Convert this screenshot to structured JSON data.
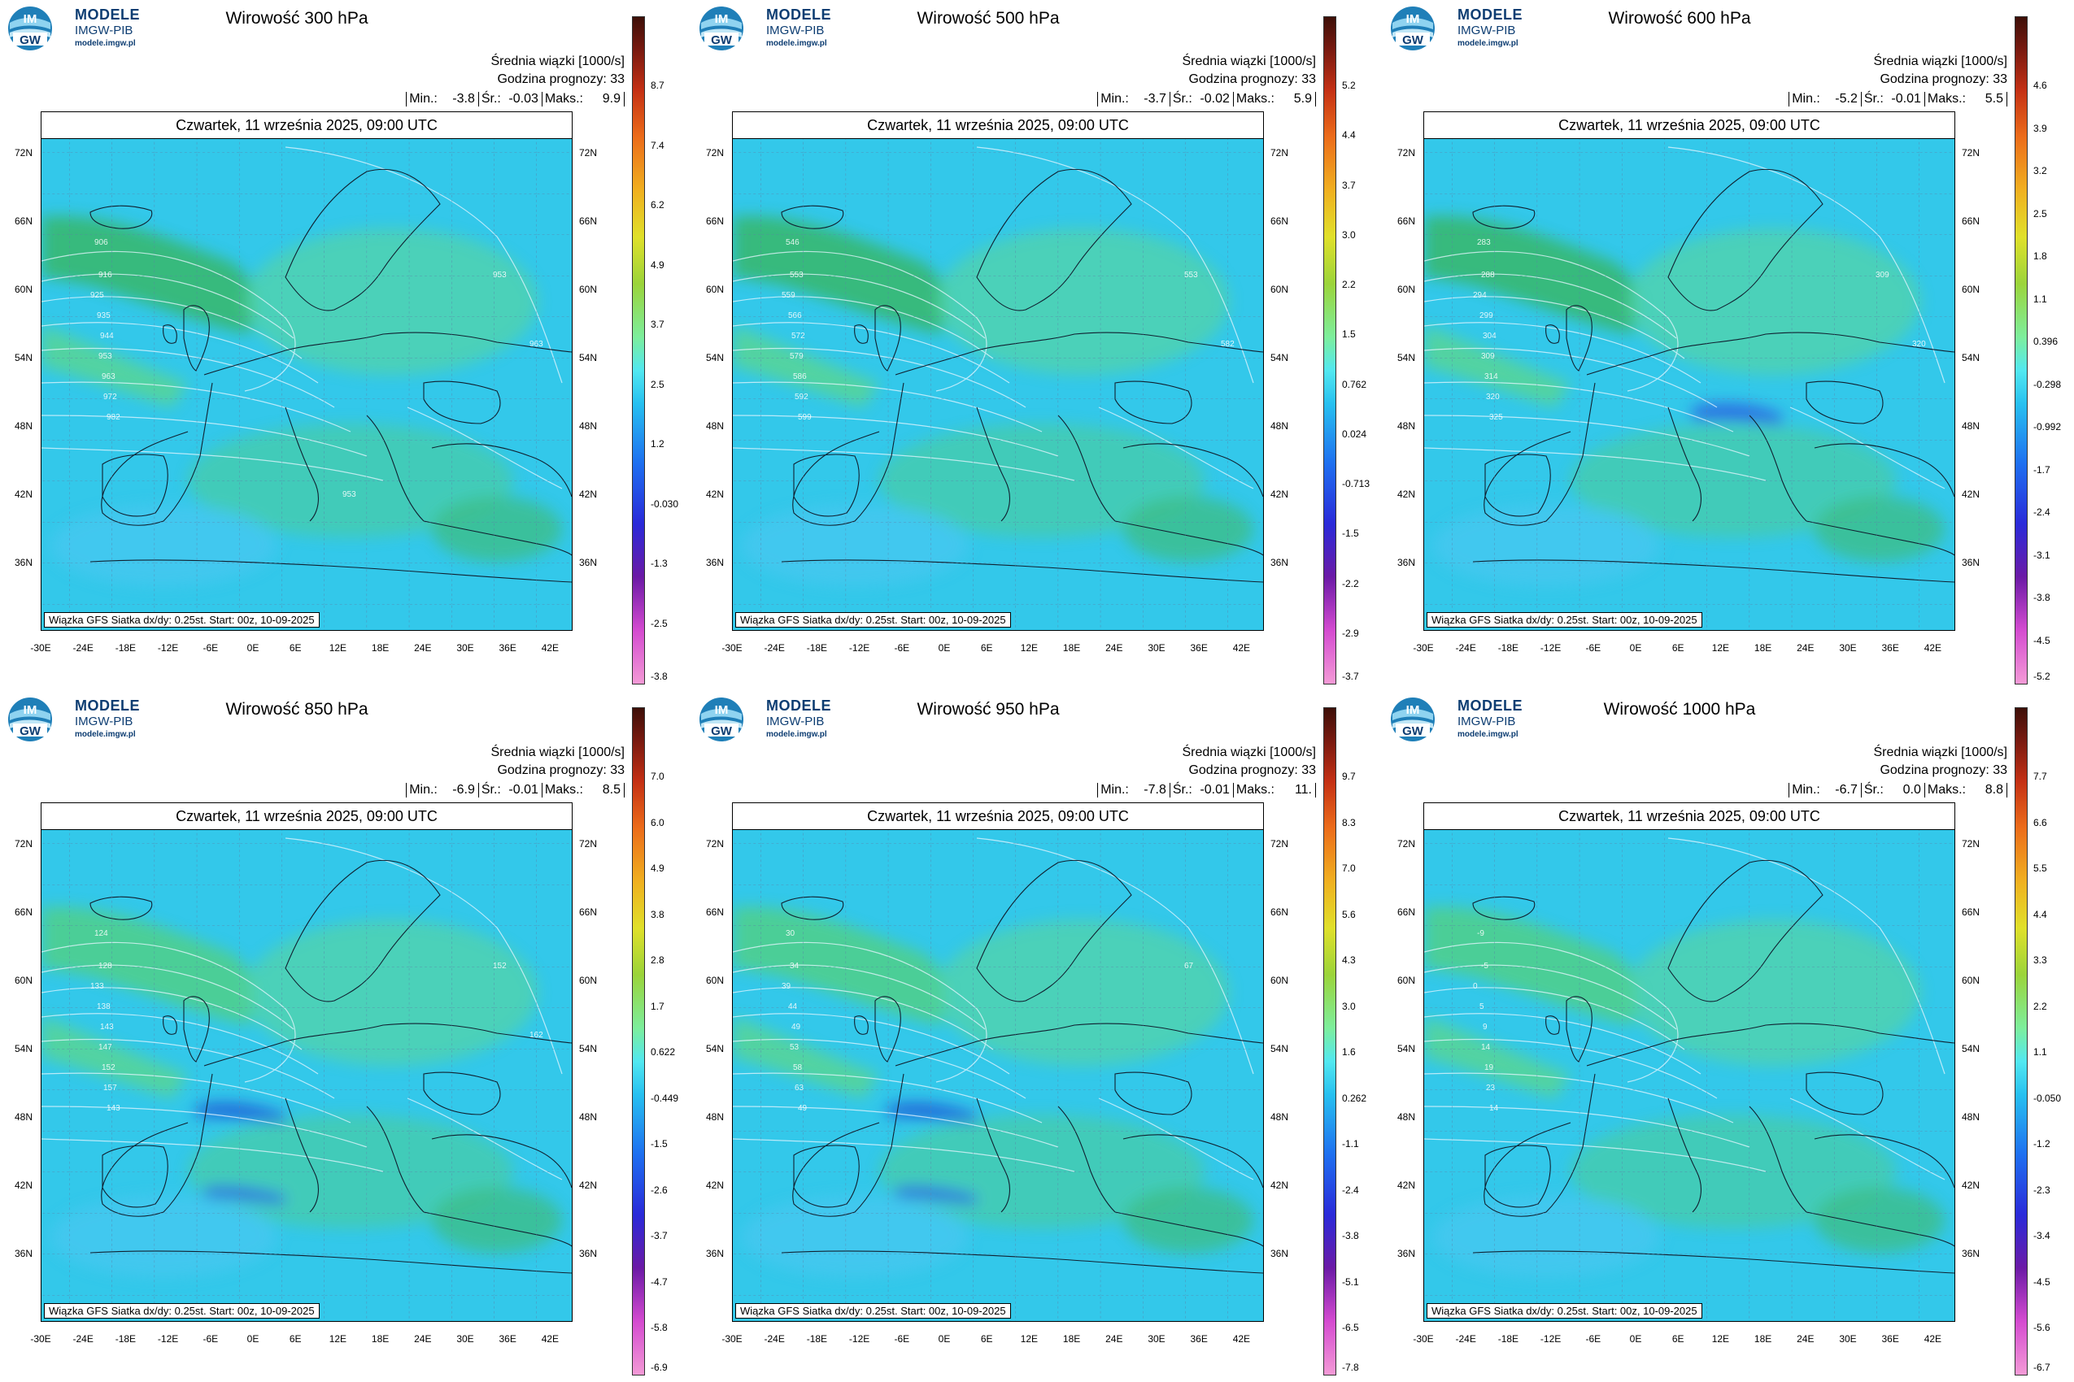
{
  "logo": {
    "line1": "MODELE",
    "line2": "IMGW-PIB",
    "line3": "modele.imgw.pl",
    "badge_top": "IM",
    "badge_bottom": "GW"
  },
  "common": {
    "info_line1": "Średnia wiązki [1000/s]",
    "info_line2": "Godzina prognozy: 33",
    "min_label": "Min.:",
    "mean_label": "Śr.:",
    "max_label": "Maks.:",
    "date": "Czwartek, 11 września 2025, 09:00 UTC",
    "source": "Wiązka GFS Siatka dx/dy: 0.25st. Start: 00z, 10-09-2025",
    "lat_labels": [
      "72N",
      "66N",
      "60N",
      "54N",
      "48N",
      "42N",
      "36N"
    ],
    "lon_labels": [
      "-30E",
      "-24E",
      "-18E",
      "-12E",
      "-6E",
      "0E",
      "6E",
      "12E",
      "18E",
      "24E",
      "30E",
      "36E",
      "42E"
    ]
  },
  "panels": [
    {
      "title": "Wirowość 300 hPa",
      "min": "-3.8",
      "mean": "-0.03",
      "max": "9.9",
      "ticks": [
        "8.7",
        "7.4",
        "6.2",
        "4.9",
        "3.7",
        "2.5",
        "1.2",
        "-0.030",
        "-1.3",
        "-2.5",
        "-3.8"
      ],
      "contour_labels": [
        "906",
        "916",
        "925",
        "935",
        "944",
        "953",
        "963",
        "972",
        "982",
        "953",
        "963",
        "953"
      ]
    },
    {
      "title": "Wirowość 500 hPa",
      "min": "-3.7",
      "mean": "-0.02",
      "max": "5.9",
      "ticks": [
        "5.2",
        "4.4",
        "3.7",
        "3.0",
        "2.2",
        "1.5",
        "0.762",
        "0.024",
        "-0.713",
        "-1.5",
        "-2.2",
        "-2.9",
        "-3.7"
      ],
      "contour_labels": [
        "546",
        "553",
        "559",
        "566",
        "572",
        "579",
        "586",
        "592",
        "599",
        "553",
        "582"
      ]
    },
    {
      "title": "Wirowość 600 hPa",
      "min": "-5.2",
      "mean": "-0.01",
      "max": "5.5",
      "ticks": [
        "4.6",
        "3.9",
        "3.2",
        "2.5",
        "1.8",
        "1.1",
        "0.396",
        "-0.298",
        "-0.992",
        "-1.7",
        "-2.4",
        "-3.1",
        "-3.8",
        "-4.5",
        "-5.2"
      ],
      "contour_labels": [
        "283",
        "288",
        "294",
        "299",
        "304",
        "309",
        "314",
        "320",
        "325",
        "309",
        "320"
      ]
    },
    {
      "title": "Wirowość 850 hPa",
      "min": "-6.9",
      "mean": "-0.01",
      "max": "8.5",
      "ticks": [
        "7.0",
        "6.0",
        "4.9",
        "3.8",
        "2.8",
        "1.7",
        "0.622",
        "-0.449",
        "-1.5",
        "-2.6",
        "-3.7",
        "-4.7",
        "-5.8",
        "-6.9"
      ],
      "contour_labels": [
        "124",
        "128",
        "133",
        "138",
        "143",
        "147",
        "152",
        "157",
        "143",
        "152",
        "162"
      ]
    },
    {
      "title": "Wirowość 950 hPa",
      "min": "-7.8",
      "mean": "-0.01",
      "max": "11.",
      "ticks": [
        "9.7",
        "8.3",
        "7.0",
        "5.6",
        "4.3",
        "3.0",
        "1.6",
        "0.262",
        "-1.1",
        "-2.4",
        "-3.8",
        "-5.1",
        "-6.5",
        "-7.8"
      ],
      "contour_labels": [
        "30",
        "34",
        "39",
        "44",
        "49",
        "53",
        "58",
        "63",
        "49",
        "67"
      ]
    },
    {
      "title": "Wirowość 1000 hPa",
      "min": "-6.7",
      "mean": "0.0",
      "max": "8.8",
      "ticks": [
        "7.7",
        "6.6",
        "5.5",
        "4.4",
        "3.3",
        "2.2",
        "1.1",
        "-0.050",
        "-1.2",
        "-2.3",
        "-3.4",
        "-4.5",
        "-5.6",
        "-6.7"
      ],
      "contour_labels": [
        "-9",
        "-5",
        "0",
        "5",
        "9",
        "14",
        "19",
        "23",
        "14"
      ]
    }
  ]
}
